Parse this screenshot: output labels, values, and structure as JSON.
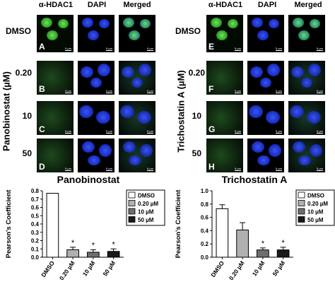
{
  "figure": {
    "columns": [
      "α-HDAC1",
      "DAPI",
      "Merged"
    ],
    "rows": [
      "DMSO",
      "0.20",
      "10",
      "50"
    ],
    "left_axis_title": "Panobinostat (µM)",
    "right_axis_title": "Trichostatin A (µM)",
    "left_letters": [
      "A",
      "B",
      "C",
      "D"
    ],
    "right_letters": [
      "E",
      "F",
      "G",
      "H"
    ],
    "scale_label": "5 µm",
    "colors": {
      "hdac1": "#1c8a1c",
      "dapi": "#1a2fc8",
      "background": "#000000"
    }
  },
  "chart_data": [
    {
      "type": "bar",
      "title": "Panobinostat",
      "ylabel": "Pearson's Coefficient",
      "categories": [
        "DMSO",
        "0.20 µM",
        "10 µM",
        "50 µM"
      ],
      "values": [
        0.77,
        0.09,
        0.06,
        0.07
      ],
      "errors": [
        0.0,
        0.03,
        0.03,
        0.03
      ],
      "significance": [
        "",
        "*",
        "*",
        "*"
      ],
      "ylim": [
        0,
        0.8
      ],
      "yticks": [
        "0.0",
        "0.1",
        "0.2",
        "0.3",
        "0.4",
        "0.5",
        "0.6",
        "0.7",
        "0.8"
      ],
      "legend": [
        "DMSO",
        "0.20 µM",
        "10 µM",
        "50 µM"
      ],
      "bar_colors": [
        "#ffffff",
        "#b0b0b0",
        "#6e6e6e",
        "#1a1a1a"
      ],
      "legend_position": "top-right"
    },
    {
      "type": "bar",
      "title": "Trichostatin A",
      "ylabel": "Pearson's Coefficient",
      "categories": [
        "DMSO",
        "0.20 µM",
        "10 µM",
        "50 µM"
      ],
      "values": [
        0.73,
        0.41,
        0.11,
        0.11
      ],
      "errors": [
        0.06,
        0.11,
        0.03,
        0.04
      ],
      "significance": [
        "",
        "",
        "*",
        "*"
      ],
      "ylim": [
        0,
        1.0
      ],
      "yticks": [
        "0.0",
        "0.2",
        "0.4",
        "0.6",
        "0.8",
        "1.0"
      ],
      "legend": [
        "DMSO",
        "0.20 µM",
        "10 µM",
        "50 µM"
      ],
      "bar_colors": [
        "#ffffff",
        "#b0b0b0",
        "#6e6e6e",
        "#1a1a1a"
      ],
      "legend_position": "top-right"
    }
  ]
}
